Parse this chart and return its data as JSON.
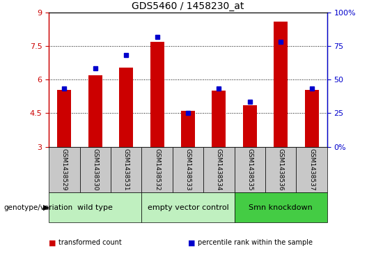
{
  "title": "GDS5460 / 1458230_at",
  "samples": [
    "GSM1438529",
    "GSM1438530",
    "GSM1438531",
    "GSM1438532",
    "GSM1438533",
    "GSM1438534",
    "GSM1438535",
    "GSM1438536",
    "GSM1438537"
  ],
  "red_values": [
    5.55,
    6.2,
    6.55,
    7.7,
    4.6,
    5.5,
    4.85,
    8.6,
    5.55
  ],
  "blue_values": [
    5.6,
    6.5,
    7.1,
    7.9,
    4.5,
    5.6,
    5.0,
    7.7,
    5.6
  ],
  "ylim_left": [
    3,
    9
  ],
  "ylim_right": [
    0,
    100
  ],
  "yticks_left": [
    3,
    4.5,
    6,
    7.5,
    9
  ],
  "yticks_right": [
    0,
    25,
    50,
    75,
    100
  ],
  "ytick_labels_left": [
    "3",
    "4.5",
    "6",
    "7.5",
    "9"
  ],
  "ytick_labels_right": [
    "0%",
    "25",
    "50",
    "75",
    "100%"
  ],
  "groups": [
    {
      "label": "wild type",
      "start": 0,
      "end": 3,
      "color": "#c0f0c0"
    },
    {
      "label": "empty vector control",
      "start": 3,
      "end": 6,
      "color": "#c0f0c0"
    },
    {
      "label": "Smn knockdown",
      "start": 6,
      "end": 9,
      "color": "#44cc44"
    }
  ],
  "bar_color": "#cc0000",
  "dot_color": "#0000cc",
  "bar_bottom": 3,
  "bg_xtick": "#c8c8c8",
  "legend_items": [
    {
      "color": "#cc0000",
      "label": "transformed count"
    },
    {
      "color": "#0000cc",
      "label": "percentile rank within the sample"
    }
  ],
  "genotype_label": "genotype/variation"
}
